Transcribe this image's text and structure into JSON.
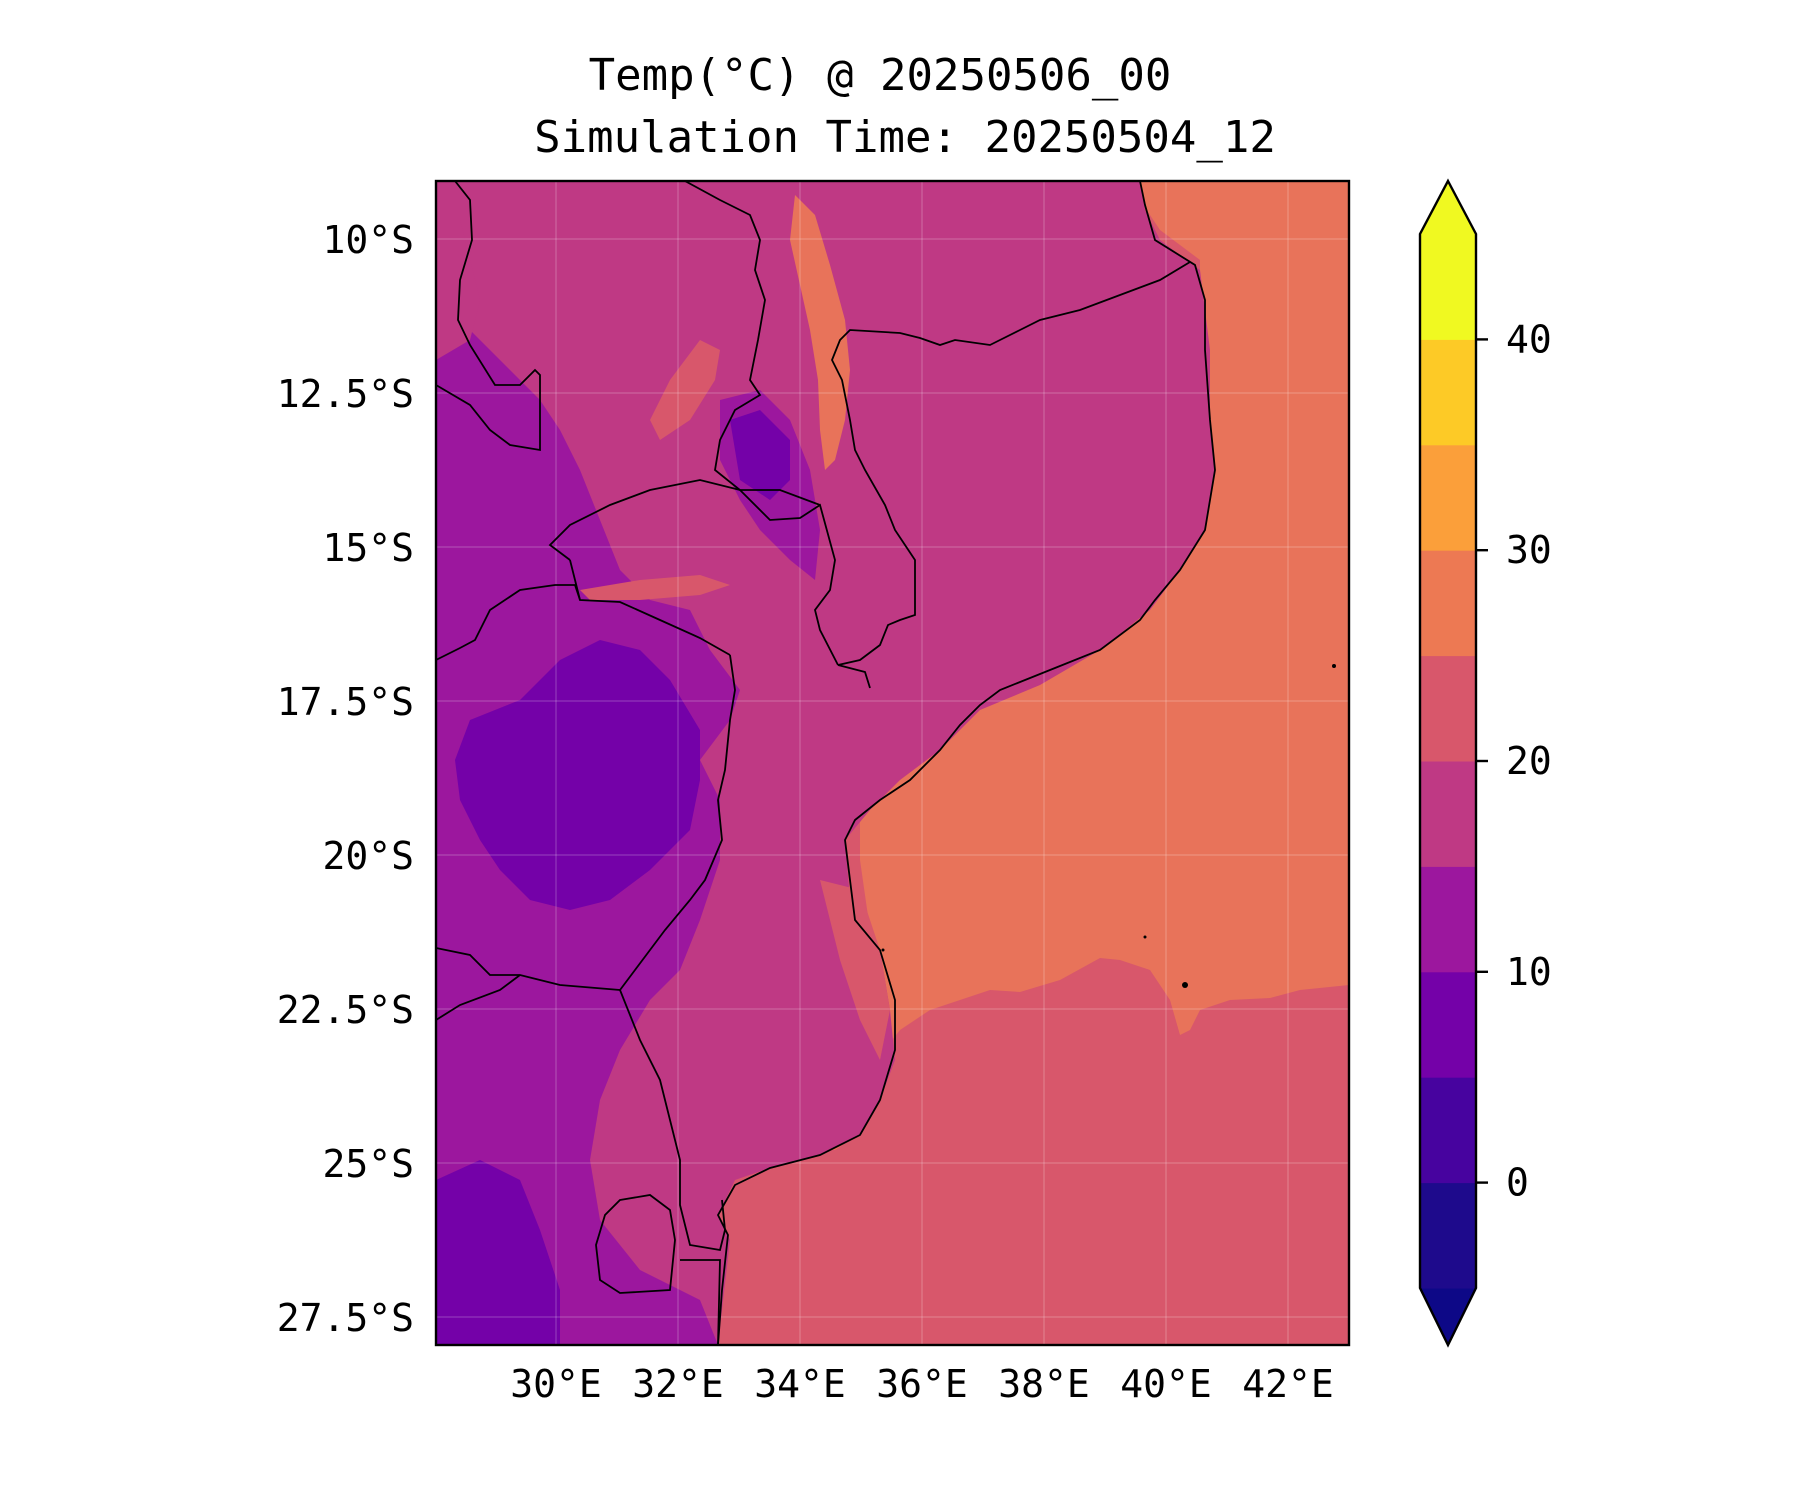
{
  "title": {
    "line1": "Temp(°C) @ 20250506_00",
    "line2": "Simulation Time: 20250504_12"
  },
  "map": {
    "lat_ticks": [
      "10°S",
      "12.5°S",
      "15°S",
      "17.5°S",
      "20°S",
      "22.5°S",
      "25°S",
      "27.5°S"
    ],
    "lon_ticks": [
      "30°E",
      "32°E",
      "34°E",
      "36°E",
      "38°E",
      "40°E",
      "42°E"
    ],
    "extent": {
      "lon": [
        28.0,
        43.0
      ],
      "lat": [
        -28.0,
        -9.0
      ]
    }
  },
  "colorbar": {
    "ticks": [
      "0",
      "10",
      "20",
      "30",
      "40"
    ],
    "levels": [
      -5,
      0,
      5,
      10,
      15,
      20,
      25,
      30,
      35,
      40,
      45
    ],
    "colors": [
      "#1e0a8c",
      "#47039f",
      "#7401a8",
      "#9c179e",
      "#bf3984",
      "#d8576b",
      "#ed7953",
      "#fb9f3a",
      "#fdca26",
      "#f0f921"
    ],
    "under_color": "#0d0887",
    "over_color": "#f0f921",
    "extend": "both"
  },
  "colors": {
    "ocean_north": "#e8735a",
    "ocean_south": "#d8576b",
    "land_mid": "#bf3984",
    "land_cool": "#9c179e",
    "land_cold": "#7401a8",
    "border": "#000000"
  }
}
